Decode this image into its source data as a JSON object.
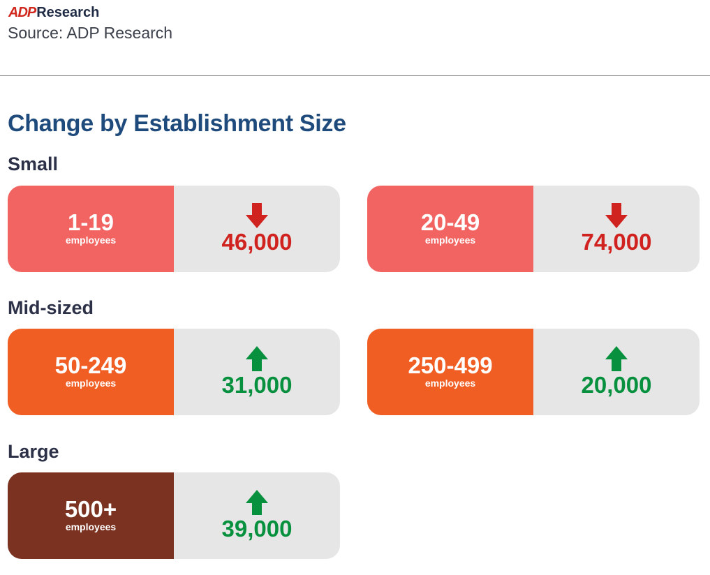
{
  "brand": {
    "logo_text": "ADP",
    "name": "Research"
  },
  "source": "Source: ADP Research",
  "title": "Change by Establishment Size",
  "colors": {
    "small": "#f26461",
    "mid": "#f05e24",
    "large": "#7b3220",
    "down": "#d0221f",
    "up": "#07913f",
    "card_bg": "#e6e6e6"
  },
  "groups": [
    {
      "label": "Small",
      "cards": [
        {
          "range": "1-19",
          "unit": "employees",
          "direction": "down",
          "value": "46,000"
        },
        {
          "range": "20-49",
          "unit": "employees",
          "direction": "down",
          "value": "74,000"
        }
      ]
    },
    {
      "label": "Mid-sized",
      "cards": [
        {
          "range": "50-249",
          "unit": "employees",
          "direction": "up",
          "value": "31,000"
        },
        {
          "range": "250-499",
          "unit": "employees",
          "direction": "up",
          "value": "20,000"
        }
      ]
    },
    {
      "label": "Large",
      "cards": [
        {
          "range": "500+",
          "unit": "employees",
          "direction": "up",
          "value": "39,000"
        }
      ]
    }
  ]
}
